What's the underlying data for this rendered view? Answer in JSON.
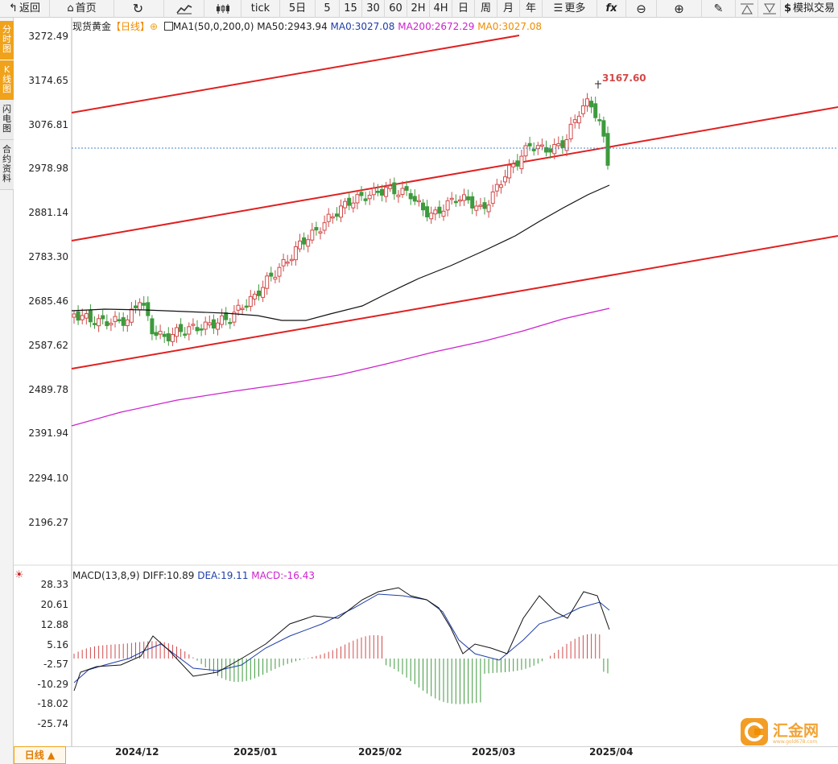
{
  "toolbar": {
    "back": "返回",
    "home": "首页",
    "tick": "tick",
    "periods": [
      "5日",
      "5",
      "15",
      "30",
      "60",
      "2H",
      "4H",
      "日",
      "周",
      "月",
      "年"
    ],
    "more": "更多",
    "fx": "fx",
    "simulate": "模拟交易"
  },
  "side_tabs": [
    "分时图",
    "K线图",
    "闪电图",
    "合约资料"
  ],
  "main_legend": {
    "symbol": "现货黄金",
    "period": "【日线】",
    "ma_name": "MA1(50,0,200,0)",
    "ma50": "MA50:2943.94",
    "ma0a": "MA0:3027.08",
    "ma200": "MA200:2672.29",
    "ma0b": "MA0:3027.08"
  },
  "price_axis": [
    "3272.49",
    "3174.65",
    "3076.81",
    "2978.98",
    "2881.14",
    "2783.30",
    "2685.46",
    "2587.62",
    "2489.78",
    "2391.94",
    "2294.10",
    "2196.27"
  ],
  "high_marker": "3167.60",
  "macd_legend": {
    "name": "MACD(13,8,9)",
    "diff": "DIFF:10.89",
    "dea": "DEA:19.11",
    "macd": "MACD:-16.43"
  },
  "macd_axis": [
    "28.33",
    "20.61",
    "12.88",
    "5.16",
    "-2.57",
    "-10.29",
    "-18.02",
    "-25.74"
  ],
  "time_axis": [
    "2024/12",
    "2025/01",
    "2025/02",
    "2025/03",
    "2025/04"
  ],
  "period_button": "日线 ▲",
  "watermark": {
    "name": "汇金网",
    "url": "www.gold678.com"
  },
  "colors": {
    "up": "#d24a4a",
    "down": "#3d9a3d",
    "channel": "#e02020",
    "ma50": "#111111",
    "ma200": "#cc22cc",
    "accent": "#f0a21b"
  }
}
